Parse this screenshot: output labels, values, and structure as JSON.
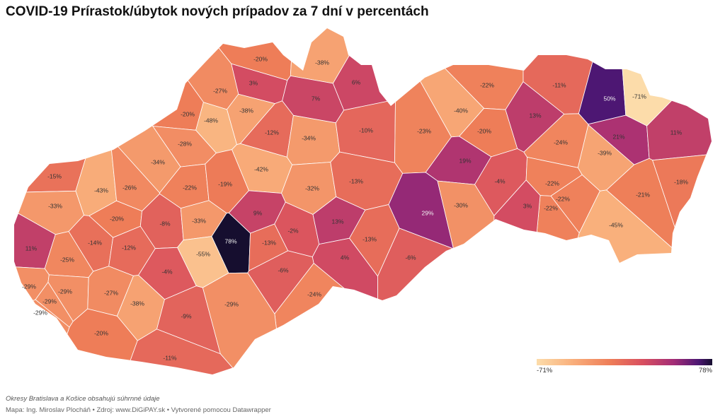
{
  "title": "COVID-19 Prírastok/úbytok nových prípadov za 7 dní v percentách",
  "legend": {
    "min_label": "-71%",
    "max_label": "78%"
  },
  "note": "Okresy Bratislava a Košice obsahujú súhrnné údaje",
  "source": "Mapa: Ing. Miroslav Plocháň • Zdroj: www.DiGiPAY.sk • Vytvorené pomocou Datawrapper",
  "colors": {
    "background": "#ffffff",
    "label_light": "#333333",
    "label_dark": "#f2f2f2",
    "border": "#ffffff"
  },
  "districts": [
    {
      "label": "-20%",
      "value": -20
    },
    {
      "label": "-38%",
      "value": -38
    },
    {
      "label": "3%",
      "value": 3
    },
    {
      "label": "6%",
      "value": 6
    },
    {
      "label": "-27%",
      "value": -27
    },
    {
      "label": "7%",
      "value": 7
    },
    {
      "label": "-38%",
      "value": -38
    },
    {
      "label": "-20%",
      "value": -20
    },
    {
      "label": "-48%",
      "value": -48
    },
    {
      "label": "-12%",
      "value": -12
    },
    {
      "label": "-34%",
      "value": -34
    },
    {
      "label": "-10%",
      "value": -10
    },
    {
      "label": "-28%",
      "value": -28
    },
    {
      "label": "-34%",
      "value": -34
    },
    {
      "label": "-42%",
      "value": -42
    },
    {
      "label": "-15%",
      "value": -15
    },
    {
      "label": "-43%",
      "value": -43
    },
    {
      "label": "-26%",
      "value": -26
    },
    {
      "label": "-22%",
      "value": -22
    },
    {
      "label": "-19%",
      "value": -19
    },
    {
      "label": "-32%",
      "value": -32
    },
    {
      "label": "-13%",
      "value": -13
    },
    {
      "label": "-33%",
      "value": -33
    },
    {
      "label": "-20%",
      "value": -20
    },
    {
      "label": "-8%",
      "value": -8
    },
    {
      "label": "-33%",
      "value": -33
    },
    {
      "label": "9%",
      "value": 9
    },
    {
      "label": "11%",
      "value": 11
    },
    {
      "label": "-14%",
      "value": -14
    },
    {
      "label": "-12%",
      "value": -12
    },
    {
      "label": "78%",
      "value": 78
    },
    {
      "label": "-13%",
      "value": -13
    },
    {
      "label": "-2%",
      "value": -2
    },
    {
      "label": "13%",
      "value": 13
    },
    {
      "label": "-13%",
      "value": -13
    },
    {
      "label": "-55%",
      "value": -55
    },
    {
      "label": "-25%",
      "value": -25
    },
    {
      "label": "-4%",
      "value": -4
    },
    {
      "label": "-6%",
      "value": -6
    },
    {
      "label": "4%",
      "value": 4
    },
    {
      "label": "-6%",
      "value": -6
    },
    {
      "label": "-29%",
      "value": -29
    },
    {
      "label": "-29%",
      "value": -29
    },
    {
      "label": "-27%",
      "value": -27
    },
    {
      "label": "-29%",
      "value": -29
    },
    {
      "label": "-38%",
      "value": -38
    },
    {
      "label": "-29%",
      "value": -29
    },
    {
      "label": "-24%",
      "value": -24
    },
    {
      "label": "-9%",
      "value": -9
    },
    {
      "label": "-29%",
      "value": -29
    },
    {
      "label": "-20%",
      "value": -20
    },
    {
      "label": "-11%",
      "value": -11
    },
    {
      "label": "-22%",
      "value": -22
    },
    {
      "label": "-40%",
      "value": -40
    },
    {
      "label": "-23%",
      "value": -23
    },
    {
      "label": "-20%",
      "value": -20
    },
    {
      "label": "13%",
      "value": 13
    },
    {
      "label": "19%",
      "value": 19
    },
    {
      "label": "-4%",
      "value": -4
    },
    {
      "label": "29%",
      "value": 29
    },
    {
      "label": "-30%",
      "value": -30
    },
    {
      "label": "-11%",
      "value": -11
    },
    {
      "label": "50%",
      "value": 50
    },
    {
      "label": "-71%",
      "value": -71
    },
    {
      "label": "21%",
      "value": 21
    },
    {
      "label": "11%",
      "value": 11
    },
    {
      "label": "-24%",
      "value": -24
    },
    {
      "label": "-39%",
      "value": -39
    },
    {
      "label": "-22%",
      "value": -22
    },
    {
      "label": "-22%",
      "value": -22
    },
    {
      "label": "-22%",
      "value": -22
    },
    {
      "label": "3%",
      "value": 3
    },
    {
      "label": "-21%",
      "value": -21
    },
    {
      "label": "-18%",
      "value": -18
    },
    {
      "label": "-45%",
      "value": -45
    }
  ]
}
